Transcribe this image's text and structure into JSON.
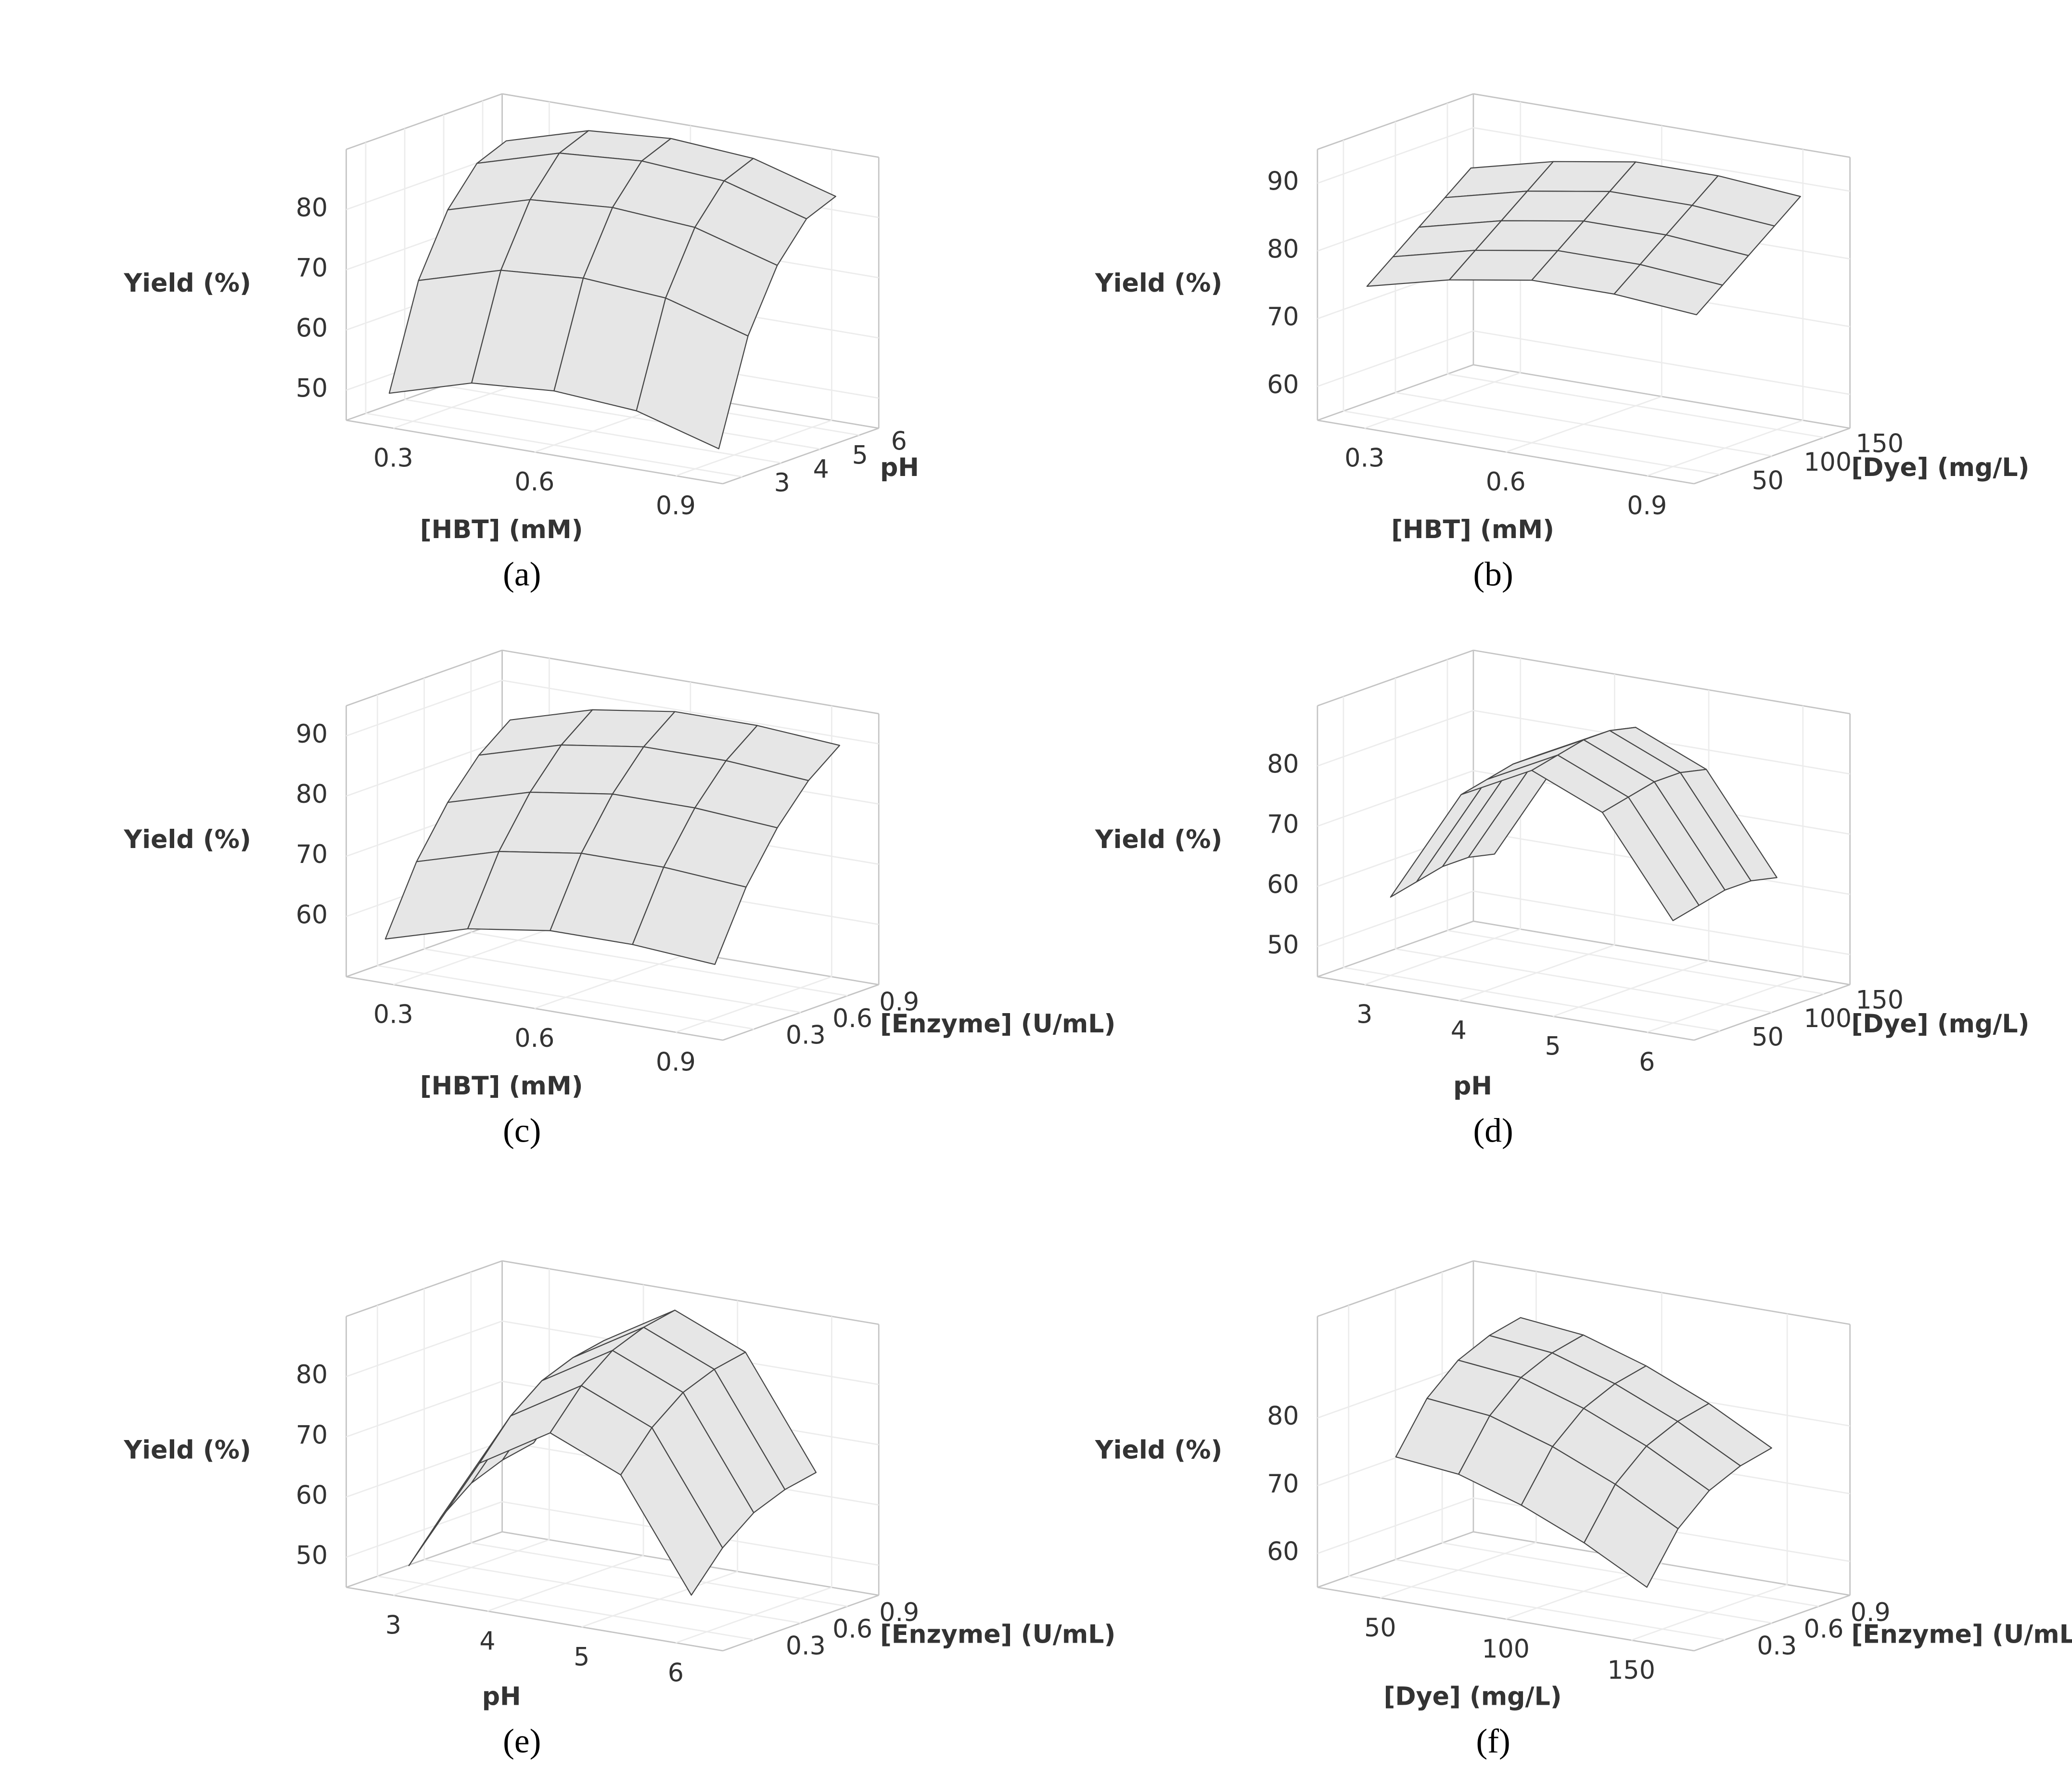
{
  "chart_data": [
    {
      "type": "surface",
      "panel_label": "(a)",
      "zlabel": "Yield (%)",
      "xlabel": "[HBT] (mM)",
      "ylabel": "pH",
      "xlim": [
        0.2,
        1.0
      ],
      "xticks": [
        0.3,
        0.6,
        0.9
      ],
      "ylim": [
        2.5,
        6.5
      ],
      "yticks": [
        3,
        4,
        5,
        6
      ],
      "zlim": [
        45,
        90
      ],
      "zticks": [
        50,
        60,
        70,
        80
      ],
      "x": [
        0.25,
        0.425,
        0.6,
        0.775,
        0.95
      ],
      "y": [
        3,
        3.75,
        4.5,
        5.25,
        6
      ],
      "z": [
        [
          49,
          53,
          54,
          53,
          49
        ],
        [
          66,
          70,
          71,
          70,
          66
        ],
        [
          76,
          80,
          81,
          80,
          76
        ],
        [
          82,
          86,
          87,
          86,
          82
        ],
        [
          84,
          88,
          89,
          88,
          84
        ]
      ],
      "color": "#e6e6e6"
    },
    {
      "type": "surface",
      "panel_label": "(b)",
      "zlabel": "Yield (%)",
      "xlabel": "[HBT] (mM)",
      "ylabel": "[Dye] (mg/L)",
      "xlim": [
        0.2,
        1.0
      ],
      "xticks": [
        0.3,
        0.6,
        0.9
      ],
      "ylim": [
        25,
        175
      ],
      "yticks": [
        50,
        100,
        150
      ],
      "zlim": [
        55,
        95
      ],
      "zticks": [
        60,
        70,
        80,
        90
      ],
      "x": [
        0.25,
        0.425,
        0.6,
        0.775,
        0.95
      ],
      "y": [
        50,
        75,
        100,
        125,
        150
      ],
      "z": [
        [
          74,
          77,
          79,
          79,
          78
        ],
        [
          77,
          80,
          82,
          82,
          81
        ],
        [
          80,
          83,
          85,
          85,
          84
        ],
        [
          83,
          86,
          88,
          88,
          87
        ],
        [
          86,
          89,
          91,
          91,
          90
        ]
      ],
      "color": "#e6e6e6"
    },
    {
      "type": "surface",
      "panel_label": "(c)",
      "zlabel": "Yield (%)",
      "xlabel": "[HBT] (mM)",
      "ylabel": "[Enzyme] (U/mL)",
      "xlim": [
        0.2,
        1.0
      ],
      "xticks": [
        0.3,
        0.6,
        0.9
      ],
      "ylim": [
        0.1,
        1.1
      ],
      "yticks": [
        0.3,
        0.6,
        0.9
      ],
      "zlim": [
        50,
        95
      ],
      "zticks": [
        60,
        70,
        80,
        90
      ],
      "x": [
        0.25,
        0.425,
        0.6,
        0.775,
        0.95
      ],
      "y": [
        0.2,
        0.4,
        0.6,
        0.8,
        1.0
      ],
      "z": [
        [
          56,
          60,
          62,
          62,
          61
        ],
        [
          67,
          71,
          73,
          73,
          72
        ],
        [
          75,
          79,
          81,
          81,
          80
        ],
        [
          81,
          85,
          87,
          87,
          86
        ],
        [
          85,
          89,
          91,
          91,
          90
        ]
      ],
      "color": "#e6e6e6"
    },
    {
      "type": "surface",
      "panel_label": "(d)",
      "zlabel": "Yield (%)",
      "xlabel": "pH",
      "ylabel": "[Dye] (mg/L)",
      "xlim": [
        2.5,
        6.5
      ],
      "xticks": [
        3,
        4,
        5,
        6
      ],
      "ylim": [
        25,
        175
      ],
      "yticks": [
        50,
        100,
        150
      ],
      "zlim": [
        45,
        90
      ],
      "zticks": [
        50,
        60,
        70,
        80
      ],
      "x": [
        3,
        3.75,
        4.5,
        5.25,
        6
      ],
      "y": [
        50,
        75,
        100,
        125,
        150
      ],
      "z": [
        [
          58,
          77,
          83,
          78,
          62
        ],
        [
          59,
          78,
          84,
          79,
          63
        ],
        [
          60,
          79,
          85,
          80,
          64
        ],
        [
          60,
          79,
          85,
          80,
          64
        ],
        [
          59,
          78,
          84,
          79,
          63
        ]
      ],
      "color": "#e6e6e6"
    },
    {
      "type": "surface",
      "panel_label": "(e)",
      "zlabel": "Yield (%)",
      "xlabel": "pH",
      "ylabel": "[Enzyme] (U/mL)",
      "xlim": [
        2.5,
        6.5
      ],
      "xticks": [
        3,
        4,
        5,
        6
      ],
      "ylim": [
        0.1,
        1.1
      ],
      "yticks": [
        0.3,
        0.6,
        0.9
      ],
      "zlim": [
        45,
        90
      ],
      "zticks": [
        50,
        60,
        70,
        80
      ],
      "x": [
        3,
        3.75,
        4.5,
        5.25,
        6
      ],
      "y": [
        0.2,
        0.4,
        0.6,
        0.8,
        1.0
      ],
      "z": [
        [
          49,
          68,
          75,
          70,
          52
        ],
        [
          55,
          74,
          81,
          76,
          58
        ],
        [
          59,
          78,
          85,
          80,
          62
        ],
        [
          61,
          80,
          87,
          82,
          64
        ],
        [
          62,
          81,
          88,
          83,
          65
        ]
      ],
      "color": "#e6e6e6"
    },
    {
      "type": "surface",
      "panel_label": "(f)",
      "zlabel": "Yield (%)",
      "xlabel": "[Dye] (mg/L)",
      "ylabel": "[Enzyme] (U/mL)",
      "xlim": [
        25,
        175
      ],
      "xticks": [
        50,
        100,
        150
      ],
      "ylim": [
        0.1,
        1.1
      ],
      "yticks": [
        0.3,
        0.6,
        0.9
      ],
      "zlim": [
        55,
        95
      ],
      "zticks": [
        60,
        70,
        80
      ],
      "x": [
        50,
        75,
        100,
        125,
        150
      ],
      "y": [
        0.2,
        0.4,
        0.6,
        0.8,
        1.0
      ],
      "z": [
        [
          75,
          74,
          71,
          67,
          62
        ],
        [
          82,
          81,
          78,
          74,
          69
        ],
        [
          86,
          85,
          82,
          78,
          73
        ],
        [
          88,
          87,
          84,
          80,
          75
        ],
        [
          89,
          88,
          85,
          81,
          76
        ]
      ],
      "color": "#e6e6e6"
    }
  ]
}
